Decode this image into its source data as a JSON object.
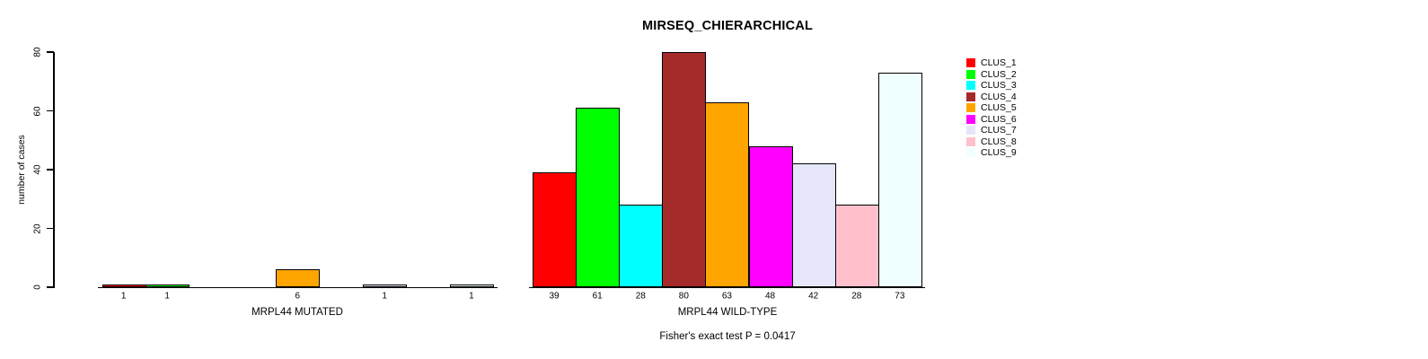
{
  "chart_data": {
    "type": "bar",
    "title": "MIRSEQ_CHIERARCHICAL",
    "ylabel": "number of cases",
    "xlabel": "",
    "ylim": [
      0,
      80
    ],
    "yticks": [
      0,
      20,
      40,
      60,
      80
    ],
    "grid": false,
    "legend_position": "right",
    "bar_labels": "value shown under each nonzero bar",
    "categories": [
      "CLUS_1",
      "CLUS_2",
      "CLUS_3",
      "CLUS_4",
      "CLUS_5",
      "CLUS_6",
      "CLUS_7",
      "CLUS_8",
      "CLUS_9"
    ],
    "colors": [
      "#FF0000",
      "#00FF00",
      "#00FFFF",
      "#A52A2A",
      "#FFA500",
      "#FF00FF",
      "#E6E6FA",
      "#FFC0CB",
      "#F0FFFF"
    ],
    "groups": [
      {
        "label": "MRPL44 MUTATED",
        "values": [
          1,
          1,
          0,
          0,
          6,
          0,
          1,
          0,
          1
        ]
      },
      {
        "label": "MRPL44 WILD-TYPE",
        "values": [
          39,
          61,
          28,
          80,
          63,
          48,
          42,
          28,
          73
        ]
      }
    ],
    "annotation": "Fisher's exact test P = 0.0417"
  },
  "legend": {
    "items": [
      {
        "label": "CLUS_1",
        "color": "#FF0000"
      },
      {
        "label": "CLUS_2",
        "color": "#00FF00"
      },
      {
        "label": "CLUS_3",
        "color": "#00FFFF"
      },
      {
        "label": "CLUS_4",
        "color": "#A52A2A"
      },
      {
        "label": "CLUS_5",
        "color": "#FFA500"
      },
      {
        "label": "CLUS_6",
        "color": "#FF00FF"
      },
      {
        "label": "CLUS_7",
        "color": "#E6E6FA"
      },
      {
        "label": "CLUS_8",
        "color": "#FFC0CB"
      },
      {
        "label": "CLUS_9",
        "color": "#F0FFFF"
      }
    ]
  }
}
